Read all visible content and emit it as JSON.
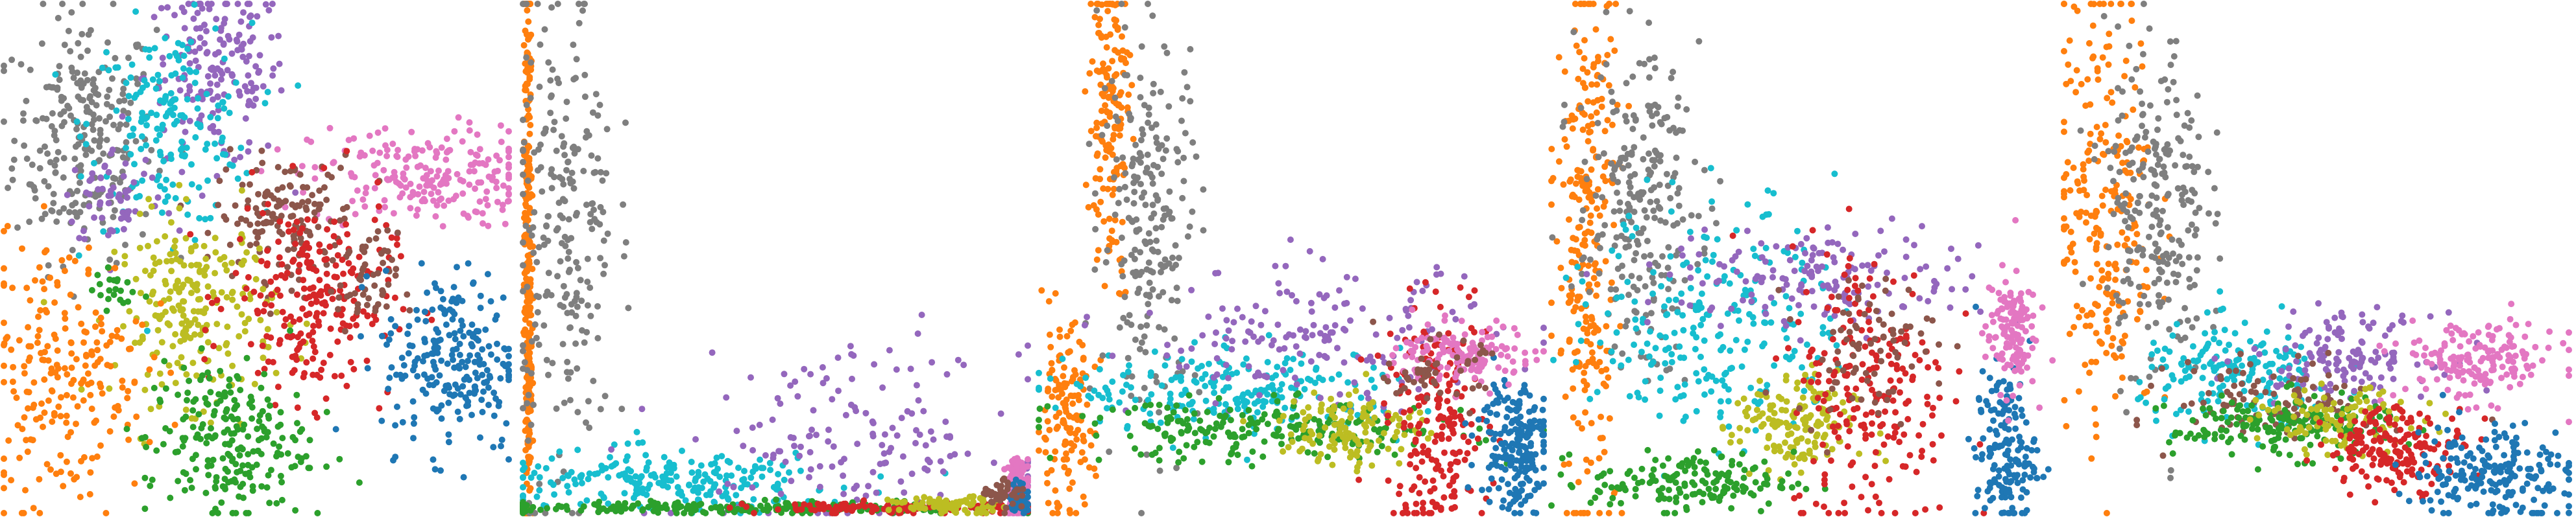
{
  "palette": {
    "c0": "#1f77b4",
    "c1": "#ff7f0e",
    "c2": "#2ca02c",
    "c3": "#d62728",
    "c4": "#9467bd",
    "c5": "#8c564b",
    "c6": "#e377c2",
    "c7": "#7f7f7f",
    "c8": "#bcbd22",
    "c9": "#17becf"
  },
  "chart_data": [
    {
      "type": "scatter",
      "title": "",
      "xlabel": "",
      "ylabel": "",
      "axes_visible": false,
      "grid": false,
      "legend": "none",
      "xlim": [
        0,
        1
      ],
      "ylim": [
        0,
        1
      ],
      "clusters": [
        {
          "color": "c7",
          "center": [
            0.16,
            0.74
          ],
          "spread": [
            0.07,
            0.12
          ],
          "count": 260
        },
        {
          "color": "c4",
          "center": [
            0.42,
            0.86
          ],
          "spread": [
            0.07,
            0.09
          ],
          "count": 180
        },
        {
          "color": "c9",
          "center": [
            0.33,
            0.76
          ],
          "spread": [
            0.08,
            0.1
          ],
          "count": 180
        },
        {
          "color": "c4",
          "center": [
            0.22,
            0.62
          ],
          "spread": [
            0.05,
            0.05
          ],
          "count": 60
        },
        {
          "color": "c6",
          "center": [
            0.83,
            0.66
          ],
          "spread": [
            0.11,
            0.05
          ],
          "count": 210
        },
        {
          "color": "c5",
          "center": [
            0.56,
            0.58
          ],
          "spread": [
            0.07,
            0.06
          ],
          "count": 150
        },
        {
          "color": "c8",
          "center": [
            0.38,
            0.4
          ],
          "spread": [
            0.08,
            0.09
          ],
          "count": 230
        },
        {
          "color": "c3",
          "center": [
            0.61,
            0.42
          ],
          "spread": [
            0.08,
            0.1
          ],
          "count": 240
        },
        {
          "color": "c5",
          "center": [
            0.72,
            0.45
          ],
          "spread": [
            0.03,
            0.05
          ],
          "count": 50
        },
        {
          "color": "c0",
          "center": [
            0.89,
            0.3
          ],
          "spread": [
            0.07,
            0.09
          ],
          "count": 230
        },
        {
          "color": "c1",
          "center": [
            0.12,
            0.28
          ],
          "spread": [
            0.08,
            0.13
          ],
          "count": 220
        },
        {
          "color": "c2",
          "center": [
            0.44,
            0.14
          ],
          "spread": [
            0.08,
            0.08
          ],
          "count": 230
        },
        {
          "color": "c2",
          "center": [
            0.22,
            0.44
          ],
          "spread": [
            0.02,
            0.02
          ],
          "count": 20
        }
      ]
    },
    {
      "type": "scatter",
      "title": "",
      "xlabel": "",
      "ylabel": "",
      "axes_visible": false,
      "grid": false,
      "legend": "none",
      "xlim": [
        0,
        1
      ],
      "ylim": [
        0,
        1
      ],
      "clusters": [
        {
          "color": "c1",
          "center": [
            0.01,
            0.5
          ],
          "spread": [
            0.004,
            0.3
          ],
          "count": 300
        },
        {
          "color": "c7",
          "center": [
            0.08,
            0.55
          ],
          "spread": [
            0.05,
            0.25
          ],
          "count": 240
        },
        {
          "color": "c9",
          "center": [
            0.3,
            0.06
          ],
          "spread": [
            0.18,
            0.03
          ],
          "count": 230
        },
        {
          "color": "c4",
          "center": [
            0.65,
            0.14
          ],
          "spread": [
            0.17,
            0.09
          ],
          "count": 160
        },
        {
          "color": "c2",
          "center": [
            0.45,
            0.01
          ],
          "spread": [
            0.28,
            0.006
          ],
          "count": 260
        },
        {
          "color": "c3",
          "center": [
            0.75,
            0.01
          ],
          "spread": [
            0.15,
            0.006
          ],
          "count": 120
        },
        {
          "color": "c8",
          "center": [
            0.85,
            0.015
          ],
          "spread": [
            0.06,
            0.008
          ],
          "count": 80
        },
        {
          "color": "c6",
          "center": [
            0.98,
            0.05
          ],
          "spread": [
            0.012,
            0.03
          ],
          "count": 140
        },
        {
          "color": "c0",
          "center": [
            0.985,
            0.03
          ],
          "spread": [
            0.01,
            0.015
          ],
          "count": 60
        },
        {
          "color": "c5",
          "center": [
            0.95,
            0.04
          ],
          "spread": [
            0.02,
            0.02
          ],
          "count": 40
        }
      ]
    },
    {
      "type": "scatter",
      "title": "",
      "xlabel": "",
      "ylabel": "",
      "axes_visible": false,
      "grid": false,
      "legend": "none",
      "xlim": [
        0,
        1
      ],
      "ylim": [
        0,
        1
      ],
      "clusters": [
        {
          "color": "c1",
          "center": [
            0.14,
            0.78
          ],
          "spread": [
            0.02,
            0.16
          ],
          "count": 160
        },
        {
          "color": "c1",
          "center": [
            0.05,
            0.18
          ],
          "spread": [
            0.03,
            0.09
          ],
          "count": 140
        },
        {
          "color": "c7",
          "center": [
            0.22,
            0.58
          ],
          "spread": [
            0.05,
            0.19
          ],
          "count": 220
        },
        {
          "color": "c9",
          "center": [
            0.4,
            0.24
          ],
          "spread": [
            0.17,
            0.04
          ],
          "count": 220
        },
        {
          "color": "c4",
          "center": [
            0.55,
            0.34
          ],
          "spread": [
            0.18,
            0.07
          ],
          "count": 170
        },
        {
          "color": "c2",
          "center": [
            0.45,
            0.16
          ],
          "spread": [
            0.2,
            0.03
          ],
          "count": 220
        },
        {
          "color": "c8",
          "center": [
            0.62,
            0.17
          ],
          "spread": [
            0.07,
            0.04
          ],
          "count": 120
        },
        {
          "color": "c3",
          "center": [
            0.79,
            0.17
          ],
          "spread": [
            0.05,
            0.11
          ],
          "count": 200
        },
        {
          "color": "c0",
          "center": [
            0.94,
            0.14
          ],
          "spread": [
            0.035,
            0.07
          ],
          "count": 190
        },
        {
          "color": "c6",
          "center": [
            0.85,
            0.31
          ],
          "spread": [
            0.07,
            0.03
          ],
          "count": 130
        },
        {
          "color": "c5",
          "center": [
            0.78,
            0.28
          ],
          "spread": [
            0.05,
            0.03
          ],
          "count": 50
        }
      ]
    },
    {
      "type": "scatter",
      "title": "",
      "xlabel": "",
      "ylabel": "",
      "axes_visible": false,
      "grid": false,
      "legend": "none",
      "xlim": [
        0,
        1
      ],
      "ylim": [
        0,
        1
      ],
      "clusters": [
        {
          "color": "c1",
          "center": [
            0.07,
            0.55
          ],
          "spread": [
            0.03,
            0.28
          ],
          "count": 260
        },
        {
          "color": "c7",
          "center": [
            0.17,
            0.6
          ],
          "spread": [
            0.06,
            0.15
          ],
          "count": 240
        },
        {
          "color": "c9",
          "center": [
            0.33,
            0.38
          ],
          "spread": [
            0.12,
            0.12
          ],
          "count": 240
        },
        {
          "color": "c4",
          "center": [
            0.54,
            0.46
          ],
          "spread": [
            0.16,
            0.05
          ],
          "count": 160
        },
        {
          "color": "c8",
          "center": [
            0.48,
            0.17
          ],
          "spread": [
            0.06,
            0.05
          ],
          "count": 160
        },
        {
          "color": "c2",
          "center": [
            0.28,
            0.06
          ],
          "spread": [
            0.1,
            0.03
          ],
          "count": 160
        },
        {
          "color": "c3",
          "center": [
            0.63,
            0.25
          ],
          "spread": [
            0.08,
            0.14
          ],
          "count": 220
        },
        {
          "color": "c5",
          "center": [
            0.62,
            0.33
          ],
          "spread": [
            0.07,
            0.07
          ],
          "count": 80
        },
        {
          "color": "c0",
          "center": [
            0.9,
            0.12
          ],
          "spread": [
            0.03,
            0.08
          ],
          "count": 160
        },
        {
          "color": "c6",
          "center": [
            0.91,
            0.36
          ],
          "spread": [
            0.025,
            0.06
          ],
          "count": 130
        }
      ]
    },
    {
      "type": "scatter",
      "title": "",
      "xlabel": "",
      "ylabel": "",
      "axes_visible": false,
      "grid": false,
      "legend": "none",
      "xlim": [
        0,
        1
      ],
      "ylim": [
        0,
        1
      ],
      "clusters": [
        {
          "color": "c1",
          "center": [
            0.08,
            0.6
          ],
          "spread": [
            0.05,
            0.22
          ],
          "count": 240
        },
        {
          "color": "c7",
          "center": [
            0.18,
            0.6
          ],
          "spread": [
            0.05,
            0.17
          ],
          "count": 240
        },
        {
          "color": "c9",
          "center": [
            0.35,
            0.27
          ],
          "spread": [
            0.1,
            0.05
          ],
          "count": 180
        },
        {
          "color": "c4",
          "center": [
            0.55,
            0.31
          ],
          "spread": [
            0.09,
            0.04
          ],
          "count": 140
        },
        {
          "color": "c6",
          "center": [
            0.82,
            0.3
          ],
          "spread": [
            0.08,
            0.04
          ],
          "count": 170
        },
        {
          "color": "c5",
          "center": [
            0.42,
            0.22
          ],
          "spread": [
            0.1,
            0.04
          ],
          "count": 100
        },
        {
          "color": "c2",
          "center": [
            0.43,
            0.17
          ],
          "spread": [
            0.11,
            0.03
          ],
          "count": 180
        },
        {
          "color": "c8",
          "center": [
            0.55,
            0.18
          ],
          "spread": [
            0.08,
            0.03
          ],
          "count": 100
        },
        {
          "color": "c3",
          "center": [
            0.66,
            0.13
          ],
          "spread": [
            0.07,
            0.04
          ],
          "count": 180
        },
        {
          "color": "c0",
          "center": [
            0.85,
            0.08
          ],
          "spread": [
            0.08,
            0.05
          ],
          "count": 200
        }
      ]
    }
  ]
}
